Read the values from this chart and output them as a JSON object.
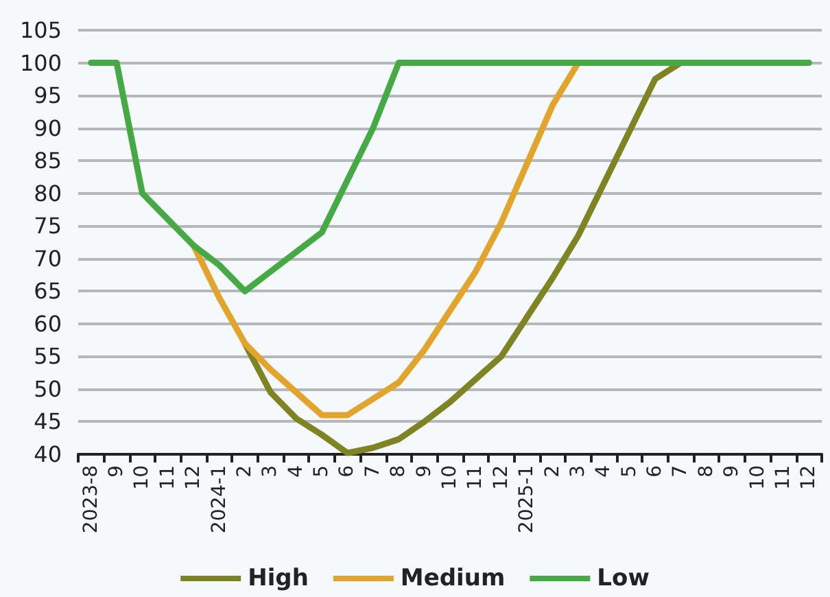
{
  "chart_data": {
    "type": "line",
    "categories": [
      "2023-8",
      "9",
      "10",
      "11",
      "12",
      "2024-1",
      "2",
      "3",
      "4",
      "5",
      "6",
      "7",
      "8",
      "9",
      "10",
      "11",
      "12",
      "2025-1",
      "2",
      "3",
      "4",
      "5",
      "6",
      "7",
      "8",
      "9",
      "10",
      "11",
      "12"
    ],
    "series": [
      {
        "name": "High",
        "color": "#7d8421",
        "values": [
          null,
          null,
          null,
          null,
          null,
          null,
          57,
          49.5,
          45.5,
          43,
          40.2,
          41,
          42.3,
          45,
          48,
          51.5,
          55,
          61,
          67,
          73.5,
          81.5,
          89.5,
          97.5,
          100,
          null,
          null,
          null,
          null,
          null
        ]
      },
      {
        "name": "Medium",
        "color": "#e3a42b",
        "values": [
          null,
          null,
          null,
          null,
          72,
          64,
          57,
          53,
          49.5,
          46,
          46,
          48.5,
          51,
          56,
          62,
          68,
          75.5,
          84.5,
          93.5,
          100,
          null,
          null,
          null,
          null,
          null,
          null,
          null,
          null,
          null
        ]
      },
      {
        "name": "Low",
        "color": "#45aa44",
        "values": [
          100,
          100,
          80,
          76,
          72,
          69,
          65,
          68,
          71,
          74,
          82,
          90,
          100,
          100,
          100,
          100,
          100,
          100,
          100,
          100,
          100,
          100,
          100,
          100,
          100,
          100,
          100,
          100,
          100
        ]
      }
    ],
    "ylim": [
      40,
      105
    ],
    "yticks": [
      40,
      45,
      50,
      55,
      60,
      65,
      70,
      75,
      80,
      85,
      90,
      95,
      100,
      105
    ],
    "grid": "y",
    "legend": "bottom",
    "marker": "none",
    "line_style": "solid"
  }
}
